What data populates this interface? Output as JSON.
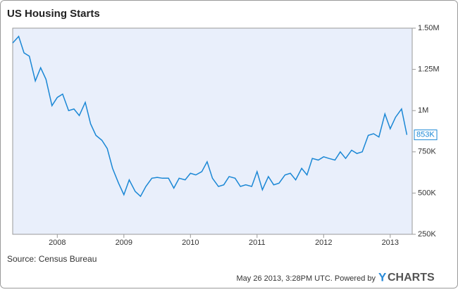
{
  "chart_data": {
    "type": "line",
    "title": "US Housing Starts",
    "source": "Source: Census Bureau",
    "footer": {
      "timestamp": "May 26 2013, 3:28PM UTC. Powered by",
      "brand_y": "Y",
      "brand_rest": "CHARTS"
    },
    "x": [
      2007.33,
      2007.42,
      2007.5,
      2007.58,
      2007.67,
      2007.75,
      2007.83,
      2007.92,
      2008,
      2008.08,
      2008.17,
      2008.25,
      2008.33,
      2008.42,
      2008.5,
      2008.58,
      2008.67,
      2008.75,
      2008.83,
      2008.92,
      2009,
      2009.08,
      2009.17,
      2009.25,
      2009.33,
      2009.42,
      2009.5,
      2009.58,
      2009.67,
      2009.75,
      2009.83,
      2009.92,
      2010,
      2010.08,
      2010.17,
      2010.25,
      2010.33,
      2010.42,
      2010.5,
      2010.58,
      2010.67,
      2010.75,
      2010.83,
      2010.92,
      2011,
      2011.08,
      2011.17,
      2011.25,
      2011.33,
      2011.42,
      2011.5,
      2011.58,
      2011.67,
      2011.75,
      2011.83,
      2011.92,
      2012,
      2012.08,
      2012.17,
      2012.25,
      2012.33,
      2012.42,
      2012.5,
      2012.58,
      2012.67,
      2012.75,
      2012.83,
      2012.92,
      2013,
      2013.08,
      2013.17,
      2013.25
    ],
    "series": [
      {
        "name": "US Housing Starts",
        "color": "#1a87d5",
        "values": [
          1410000,
          1450000,
          1350000,
          1330000,
          1180000,
          1260000,
          1190000,
          1030000,
          1080000,
          1100000,
          1000000,
          1010000,
          970000,
          1050000,
          920000,
          850000,
          820000,
          770000,
          650000,
          560000,
          490000,
          580000,
          510000,
          480000,
          540000,
          590000,
          595000,
          590000,
          590000,
          530000,
          590000,
          580000,
          620000,
          610000,
          630000,
          690000,
          590000,
          540000,
          550000,
          600000,
          590000,
          540000,
          550000,
          540000,
          630000,
          520000,
          600000,
          550000,
          560000,
          610000,
          620000,
          580000,
          650000,
          610000,
          710000,
          700000,
          720000,
          710000,
          700000,
          750000,
          710000,
          760000,
          740000,
          750000,
          850000,
          860000,
          840000,
          980000,
          890000,
          960000,
          1010000,
          853000
        ],
        "value_labels": [
          null,
          null,
          null,
          null,
          null,
          null,
          null,
          null,
          null,
          null,
          null,
          null,
          null,
          null,
          null,
          null,
          null,
          null,
          null,
          null,
          null,
          null,
          null,
          null,
          null,
          null,
          null,
          null,
          null,
          null,
          null,
          null,
          null,
          null,
          null,
          null,
          null,
          null,
          null,
          null,
          null,
          null,
          null,
          null,
          null,
          null,
          null,
          null,
          null,
          null,
          null,
          null,
          null,
          null,
          null,
          null,
          null,
          null,
          null,
          null,
          null,
          null,
          null,
          null,
          null,
          null,
          null,
          null,
          null,
          null,
          null,
          "853K"
        ]
      }
    ],
    "xlim": [
      2007.33,
      2013.33
    ],
    "xticks": [
      2008,
      2009,
      2010,
      2011,
      2012,
      2013
    ],
    "ylim": [
      250000,
      1500000
    ],
    "yticks": [
      {
        "value": 250000,
        "label": "250K"
      },
      {
        "value": 500000,
        "label": "500K"
      },
      {
        "value": 750000,
        "label": "750K"
      },
      {
        "value": 1000000,
        "label": "1M"
      },
      {
        "value": 1250000,
        "label": "1.25M"
      },
      {
        "value": 1500000,
        "label": "1.50M"
      }
    ],
    "grid": false
  }
}
